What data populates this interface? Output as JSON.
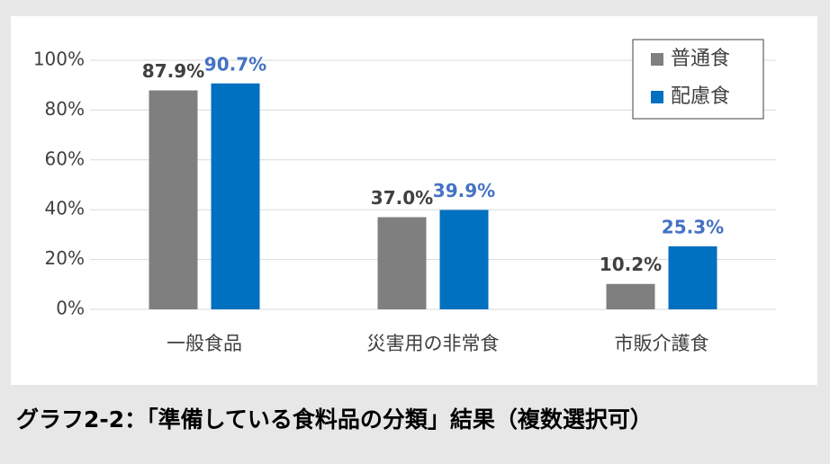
{
  "chart_data": {
    "type": "bar",
    "caption": "グラフ2-2：「準備している食料品の分類」結果（複数選択可）",
    "categories": [
      "一般食品",
      "災害用の非常食",
      "市販介護食"
    ],
    "series": [
      {
        "name": "普通食",
        "color": "#7f7f7f",
        "label_color": "#404040",
        "values": [
          87.9,
          37.0,
          10.2
        ],
        "value_labels": [
          "87.9%",
          "37.0%",
          "10.2%"
        ]
      },
      {
        "name": "配慮食",
        "color": "#0070c0",
        "label_color": "#4472c4",
        "values": [
          90.7,
          39.9,
          25.3
        ],
        "value_labels": [
          "90.7%",
          "39.9%",
          "25.3%"
        ]
      }
    ],
    "ylim": [
      0,
      100
    ],
    "yticks": [
      {
        "value": 0,
        "label": "0%"
      },
      {
        "value": 20,
        "label": "20%"
      },
      {
        "value": 40,
        "label": "40%"
      },
      {
        "value": 60,
        "label": "60%"
      },
      {
        "value": 80,
        "label": "80%"
      },
      {
        "value": 100,
        "label": "100%"
      }
    ],
    "grid": true,
    "legend": "top-right"
  }
}
